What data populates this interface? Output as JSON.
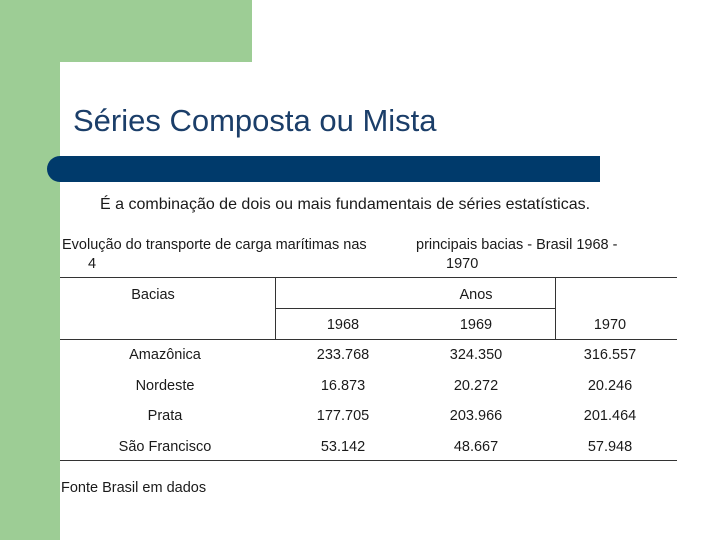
{
  "slide": {
    "title": "Séries Composta ou Mista",
    "subtitle": "É a combinação de dois ou mais fundamentais de séries estatísticas.",
    "caption": {
      "left_line1": "Evolução do transporte de carga  marítimas nas",
      "left_line2": "4",
      "right_line1": "principais bacias - Brasil 1968 -",
      "right_line2": "1970"
    },
    "footer": "Fonte Brasil em dados"
  },
  "table": {
    "col_header_left": "Bacias",
    "col_header_group": "Anos",
    "years": [
      "1968",
      "1969",
      "1970"
    ],
    "rows": [
      {
        "bacia": "Amazônica",
        "values": [
          "233.768",
          "324.350",
          "316.557"
        ]
      },
      {
        "bacia": "Nordeste",
        "values": [
          "16.873",
          "20.272",
          "20.246"
        ]
      },
      {
        "bacia": "Prata",
        "values": [
          "177.705",
          "203.966",
          "201.464"
        ]
      },
      {
        "bacia": "São Francisco",
        "values": [
          "53.142",
          "48.667",
          "57.948"
        ]
      }
    ]
  },
  "colors": {
    "accent_green": "#9dcd95",
    "title_blue": "#1b3e69",
    "bar_navy": "#003a6b"
  }
}
